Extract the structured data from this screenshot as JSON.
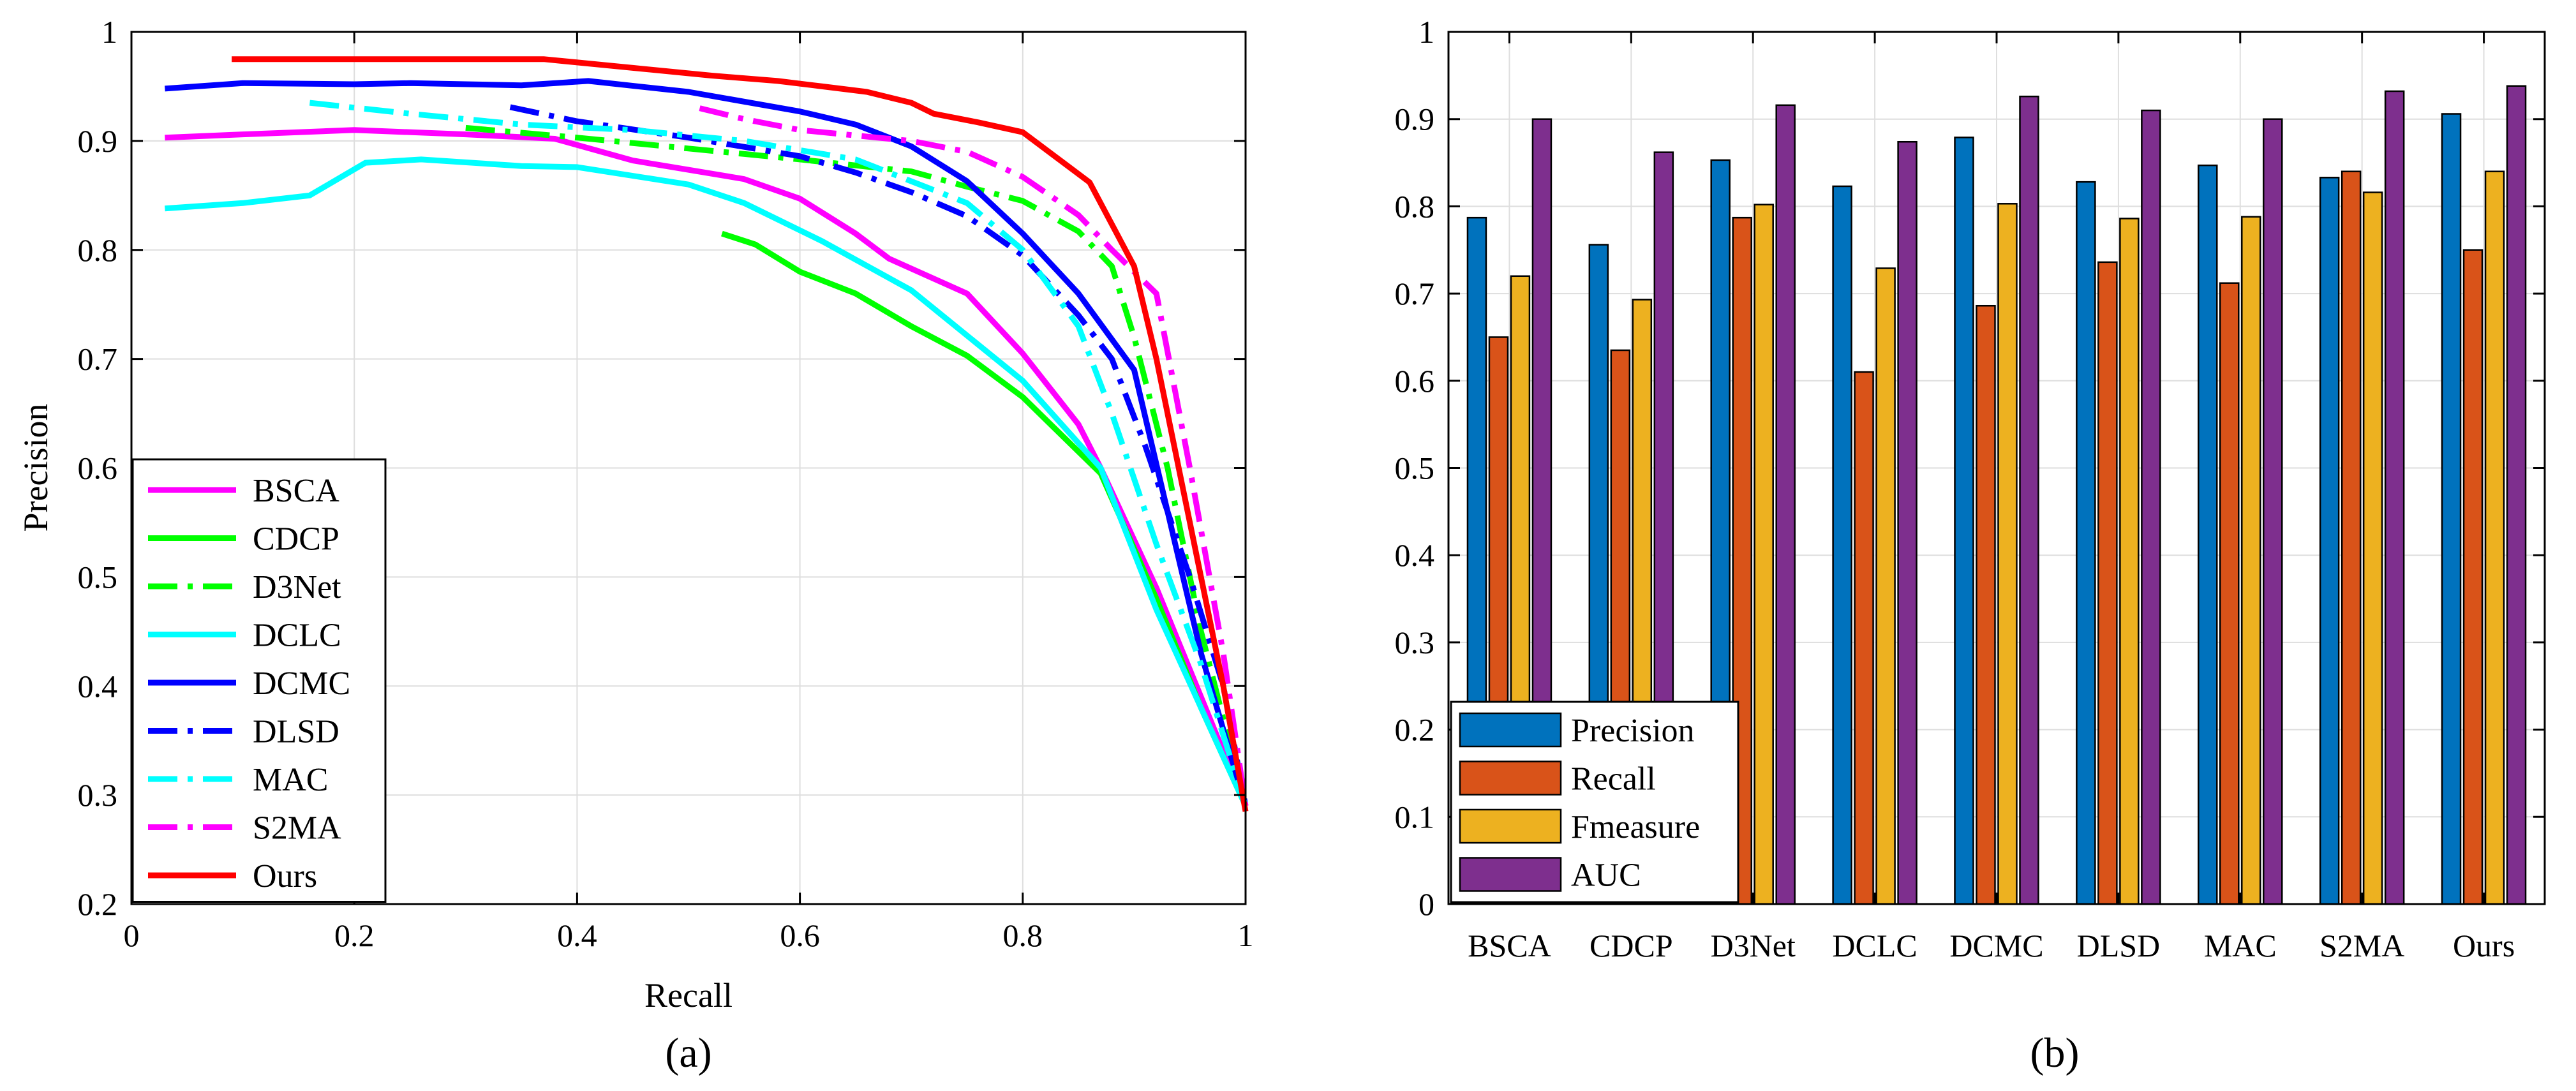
{
  "chart_data": [
    {
      "type": "line",
      "panel_label": "(a)",
      "xlabel": "Recall",
      "ylabel": "Precision",
      "xlim": [
        0,
        1
      ],
      "ylim": [
        0.2,
        1
      ],
      "xticks": [
        0,
        0.2,
        0.4,
        0.6,
        0.8,
        1
      ],
      "xtick_labels": [
        "0",
        "0.2",
        "0.4",
        "0.6",
        "0.8",
        "1"
      ],
      "yticks": [
        0.2,
        0.3,
        0.4,
        0.5,
        0.6,
        0.7,
        0.8,
        0.9,
        1
      ],
      "ytick_labels": [
        "0.2",
        "0.3",
        "0.4",
        "0.5",
        "0.6",
        "0.7",
        "0.8",
        "0.9",
        "1"
      ],
      "grid": true,
      "legend_position": "bottom-left",
      "series": [
        {
          "name": "BSCA",
          "color": "#ff00ff",
          "style": "solid",
          "points": [
            [
              0.03,
              0.903
            ],
            [
              0.1,
              0.906
            ],
            [
              0.2,
              0.91
            ],
            [
              0.3,
              0.906
            ],
            [
              0.38,
              0.902
            ],
            [
              0.45,
              0.882
            ],
            [
              0.55,
              0.865
            ],
            [
              0.6,
              0.847
            ],
            [
              0.65,
              0.815
            ],
            [
              0.68,
              0.792
            ],
            [
              0.75,
              0.76
            ],
            [
              0.8,
              0.705
            ],
            [
              0.85,
              0.64
            ],
            [
              0.87,
              0.6
            ],
            [
              0.92,
              0.49
            ],
            [
              0.96,
              0.39
            ],
            [
              1.0,
              0.29
            ]
          ]
        },
        {
          "name": "CDCP",
          "color": "#00ff00",
          "style": "solid",
          "points": [
            [
              0.53,
              0.815
            ],
            [
              0.56,
              0.805
            ],
            [
              0.6,
              0.78
            ],
            [
              0.65,
              0.76
            ],
            [
              0.7,
              0.73
            ],
            [
              0.75,
              0.703
            ],
            [
              0.8,
              0.665
            ],
            [
              0.87,
              0.595
            ],
            [
              0.92,
              0.48
            ],
            [
              0.96,
              0.38
            ],
            [
              1.0,
              0.29
            ]
          ]
        },
        {
          "name": "D3Net",
          "color": "#00ff00",
          "style": "dashdot",
          "points": [
            [
              0.3,
              0.912
            ],
            [
              0.4,
              0.903
            ],
            [
              0.5,
              0.893
            ],
            [
              0.6,
              0.883
            ],
            [
              0.7,
              0.872
            ],
            [
              0.75,
              0.858
            ],
            [
              0.8,
              0.845
            ],
            [
              0.85,
              0.817
            ],
            [
              0.88,
              0.785
            ],
            [
              0.9,
              0.72
            ],
            [
              0.93,
              0.6
            ],
            [
              0.96,
              0.45
            ],
            [
              1.0,
              0.29
            ]
          ]
        },
        {
          "name": "DCLC",
          "color": "#00ffff",
          "style": "solid",
          "points": [
            [
              0.03,
              0.838
            ],
            [
              0.1,
              0.843
            ],
            [
              0.16,
              0.85
            ],
            [
              0.21,
              0.88
            ],
            [
              0.26,
              0.883
            ],
            [
              0.35,
              0.877
            ],
            [
              0.4,
              0.876
            ],
            [
              0.5,
              0.86
            ],
            [
              0.55,
              0.843
            ],
            [
              0.62,
              0.808
            ],
            [
              0.7,
              0.763
            ],
            [
              0.8,
              0.68
            ],
            [
              0.87,
              0.6
            ],
            [
              0.92,
              0.47
            ],
            [
              0.96,
              0.38
            ],
            [
              1.0,
              0.29
            ]
          ]
        },
        {
          "name": "DCMC",
          "color": "#0000ff",
          "style": "solid",
          "points": [
            [
              0.03,
              0.948
            ],
            [
              0.1,
              0.953
            ],
            [
              0.2,
              0.952
            ],
            [
              0.25,
              0.953
            ],
            [
              0.35,
              0.951
            ],
            [
              0.41,
              0.955
            ],
            [
              0.5,
              0.945
            ],
            [
              0.6,
              0.927
            ],
            [
              0.65,
              0.915
            ],
            [
              0.7,
              0.895
            ],
            [
              0.75,
              0.863
            ],
            [
              0.8,
              0.815
            ],
            [
              0.85,
              0.76
            ],
            [
              0.9,
              0.69
            ],
            [
              0.93,
              0.56
            ],
            [
              0.96,
              0.43
            ],
            [
              1.0,
              0.29
            ]
          ]
        },
        {
          "name": "DLSD",
          "color": "#0000ff",
          "style": "dashdot",
          "points": [
            [
              0.34,
              0.931
            ],
            [
              0.4,
              0.918
            ],
            [
              0.5,
              0.903
            ],
            [
              0.6,
              0.886
            ],
            [
              0.65,
              0.871
            ],
            [
              0.7,
              0.853
            ],
            [
              0.75,
              0.831
            ],
            [
              0.8,
              0.795
            ],
            [
              0.85,
              0.74
            ],
            [
              0.88,
              0.7
            ],
            [
              0.91,
              0.62
            ],
            [
              0.95,
              0.5
            ],
            [
              0.98,
              0.4
            ],
            [
              1.0,
              0.29
            ]
          ]
        },
        {
          "name": "MAC",
          "color": "#00ffff",
          "style": "dashdot",
          "points": [
            [
              0.16,
              0.935
            ],
            [
              0.25,
              0.925
            ],
            [
              0.35,
              0.915
            ],
            [
              0.45,
              0.91
            ],
            [
              0.55,
              0.9
            ],
            [
              0.65,
              0.883
            ],
            [
              0.75,
              0.843
            ],
            [
              0.8,
              0.8
            ],
            [
              0.85,
              0.73
            ],
            [
              0.88,
              0.65
            ],
            [
              0.92,
              0.53
            ],
            [
              0.96,
              0.42
            ],
            [
              1.0,
              0.29
            ]
          ]
        },
        {
          "name": "S2MA",
          "color": "#ff00ff",
          "style": "dashdot",
          "points": [
            [
              0.51,
              0.93
            ],
            [
              0.55,
              0.92
            ],
            [
              0.6,
              0.91
            ],
            [
              0.65,
              0.905
            ],
            [
              0.7,
              0.9
            ],
            [
              0.75,
              0.89
            ],
            [
              0.8,
              0.867
            ],
            [
              0.85,
              0.832
            ],
            [
              0.88,
              0.8
            ],
            [
              0.92,
              0.76
            ],
            [
              0.95,
              0.6
            ],
            [
              0.98,
              0.43
            ],
            [
              1.0,
              0.29
            ]
          ]
        },
        {
          "name": "Ours",
          "color": "#ff0000",
          "style": "solid",
          "points": [
            [
              0.09,
              0.975
            ],
            [
              0.2,
              0.975
            ],
            [
              0.3,
              0.975
            ],
            [
              0.37,
              0.975
            ],
            [
              0.45,
              0.967
            ],
            [
              0.52,
              0.96
            ],
            [
              0.58,
              0.955
            ],
            [
              0.62,
              0.95
            ],
            [
              0.66,
              0.945
            ],
            [
              0.7,
              0.935
            ],
            [
              0.72,
              0.925
            ],
            [
              0.76,
              0.917
            ],
            [
              0.8,
              0.908
            ],
            [
              0.86,
              0.862
            ],
            [
              0.9,
              0.785
            ],
            [
              0.92,
              0.7
            ],
            [
              0.95,
              0.55
            ],
            [
              0.98,
              0.4
            ],
            [
              1.0,
              0.285
            ]
          ]
        }
      ]
    },
    {
      "type": "bar",
      "panel_label": "(b)",
      "xlabel": "",
      "ylabel": "",
      "ylim": [
        0,
        1
      ],
      "yticks": [
        0,
        0.1,
        0.2,
        0.3,
        0.4,
        0.5,
        0.6,
        0.7,
        0.8,
        0.9,
        1
      ],
      "ytick_labels": [
        "0",
        "0.1",
        "0.2",
        "0.3",
        "0.4",
        "0.5",
        "0.6",
        "0.7",
        "0.8",
        "0.9",
        "1"
      ],
      "grid": true,
      "legend_position": "bottom-left",
      "categories": [
        "BSCA",
        "CDCP",
        "D3Net",
        "DCLC",
        "DCMC",
        "DLSD",
        "MAC",
        "S2MA",
        "Ours"
      ],
      "series": [
        {
          "name": "Precision",
          "color": "#0072bd",
          "values": [
            0.787,
            0.756,
            0.853,
            0.823,
            0.879,
            0.828,
            0.847,
            0.833,
            0.906
          ]
        },
        {
          "name": "Recall",
          "color": "#d95319",
          "values": [
            0.65,
            0.635,
            0.787,
            0.61,
            0.686,
            0.736,
            0.712,
            0.84,
            0.75
          ]
        },
        {
          "name": "Fmeasure",
          "color": "#edb120",
          "values": [
            0.72,
            0.693,
            0.802,
            0.729,
            0.803,
            0.786,
            0.788,
            0.816,
            0.84
          ]
        },
        {
          "name": "AUC",
          "color": "#7e2f8e",
          "values": [
            0.9,
            0.862,
            0.916,
            0.874,
            0.926,
            0.91,
            0.9,
            0.932,
            0.938
          ]
        }
      ]
    }
  ]
}
